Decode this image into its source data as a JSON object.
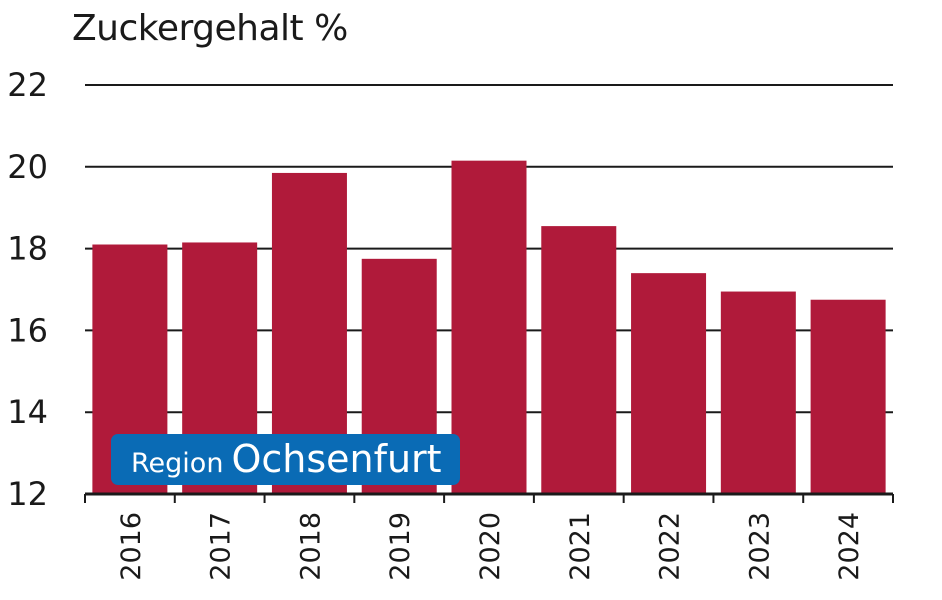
{
  "chart_data": {
    "type": "bar",
    "title": "Zuckergehalt %",
    "xlabel": "",
    "ylabel": "",
    "categories": [
      "2016",
      "2017",
      "2018",
      "2019",
      "2020",
      "2021",
      "2022",
      "2023",
      "2024"
    ],
    "values": [
      18.1,
      18.15,
      19.85,
      17.75,
      20.15,
      18.55,
      17.4,
      16.95,
      16.75
    ],
    "ylim": [
      12,
      22
    ],
    "yticks": [
      "12",
      "14",
      "16",
      "18",
      "20",
      "22"
    ],
    "grid": true,
    "bar_color": "#b01a3a",
    "annotation": {
      "prefix": "Region",
      "name": "Ochsenfurt",
      "color": "#0a6bb5"
    }
  }
}
